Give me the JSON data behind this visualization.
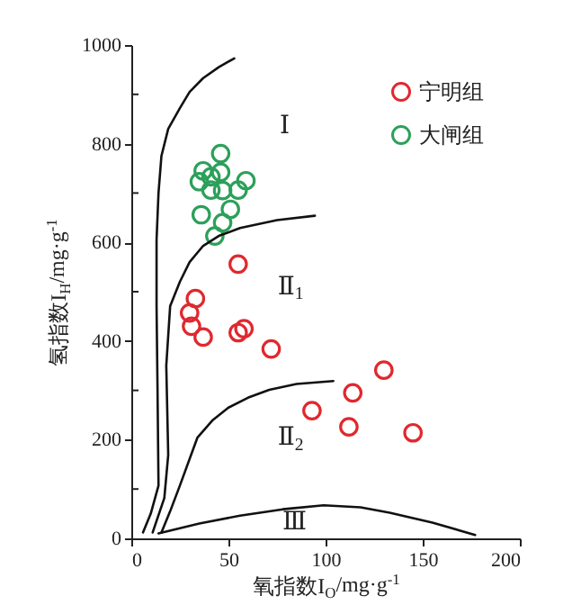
{
  "chart_data": {
    "type": "scatter",
    "xlabel": "氧指数I$_{O}$/mg·g$^{-1}$",
    "ylabel": "氢指数I$_{H}$/mg·g$^{-1}$",
    "xlim": [
      0,
      200
    ],
    "ylim": [
      0,
      1000
    ],
    "xticks": [
      0,
      50,
      100,
      150,
      200
    ],
    "yticks": [
      0,
      {
        "value": 100,
        "label": null
      },
      200,
      {
        "value": 300,
        "label": null
      },
      400,
      {
        "value": 500,
        "label": null
      },
      600,
      {
        "value": 700,
        "label": null
      },
      800,
      {
        "value": 900,
        "label": null
      },
      1000
    ],
    "marker": "circle",
    "legend": "top right",
    "series": [
      {
        "name": "宁明组",
        "color": "#e0282e",
        "x": [
          33,
          55,
          30,
          31,
          37,
          55,
          58,
          72,
          130,
          114,
          93,
          112,
          145
        ],
        "values": [
          486,
          556,
          457,
          430,
          408,
          417,
          425,
          384,
          341,
          295,
          259,
          226,
          214
        ]
      },
      {
        "name": "大闸组",
        "color": "#2ca05a",
        "x": [
          46,
          37,
          46,
          41,
          35,
          59,
          41,
          47,
          55,
          36,
          51,
          47,
          43
        ],
        "values": [
          780,
          745,
          742,
          733,
          723,
          725,
          706,
          705,
          706,
          656,
          667,
          640,
          613
        ]
      },
      {
        "type": "line",
        "marker": "none",
        "color": "#111111",
        "x": [
          6,
          10,
          14,
          13.5,
          13,
          13,
          14,
          15.5,
          19,
          25,
          30,
          37,
          45,
          53
        ],
        "values": [
          12,
          50,
          107,
          300,
          471,
          605,
          700,
          775,
          830,
          872,
          905,
          933,
          955,
          973
        ]
      },
      {
        "type": "line",
        "marker": "none",
        "color": "#111111",
        "x": [
          11,
          17,
          19,
          18.5,
          18,
          20,
          25,
          30,
          37,
          45,
          56,
          75,
          94.5
        ],
        "values": [
          12,
          82,
          169,
          260,
          350,
          471,
          520,
          560,
          593,
          613,
          629,
          645,
          654
        ]
      },
      {
        "type": "line",
        "marker": "none",
        "color": "#111111",
        "x": [
          15.5,
          20,
          25,
          34,
          42,
          50,
          60,
          71,
          85,
          104
        ],
        "values": [
          12,
          55,
          107,
          204,
          240,
          265,
          285,
          301,
          313,
          319
        ]
      },
      {
        "type": "line",
        "marker": "none",
        "color": "#111111",
        "x": [
          14,
          35,
          56,
          78,
          99,
          118,
          133,
          155,
          177
        ],
        "values": [
          10,
          30,
          46,
          59,
          67,
          63,
          52,
          32,
          7
        ]
      }
    ],
    "annotations": [
      "Ⅰ",
      "Ⅱ$_{1}$",
      "Ⅱ$_{2}$",
      "Ⅲ"
    ]
  }
}
